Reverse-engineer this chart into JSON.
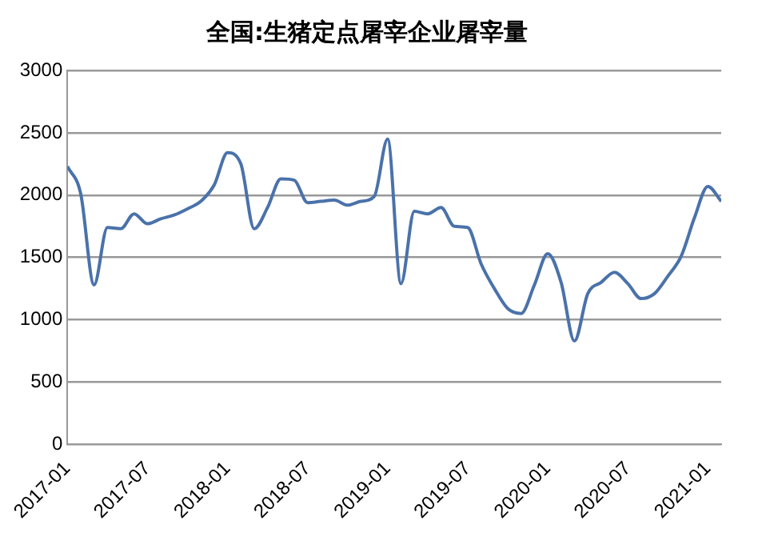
{
  "chart_data": {
    "type": "line",
    "title": "全国:生猪定点屠宰企业屠宰量",
    "x": [
      "2017-01",
      "2017-02",
      "2017-03",
      "2017-04",
      "2017-05",
      "2017-06",
      "2017-07",
      "2017-08",
      "2017-09",
      "2017-10",
      "2017-11",
      "2017-12",
      "2018-01",
      "2018-02",
      "2018-03",
      "2018-04",
      "2018-05",
      "2018-06",
      "2018-07",
      "2018-08",
      "2018-09",
      "2018-10",
      "2018-11",
      "2018-12",
      "2019-01",
      "2019-02",
      "2019-03",
      "2019-04",
      "2019-05",
      "2019-06",
      "2019-07",
      "2019-08",
      "2019-09",
      "2019-10",
      "2019-11",
      "2019-12",
      "2020-01",
      "2020-02",
      "2020-03",
      "2020-04",
      "2020-05",
      "2020-06",
      "2020-07",
      "2020-08",
      "2020-09",
      "2020-10",
      "2020-11",
      "2020-12",
      "2021-01",
      "2021-02"
    ],
    "series": [
      {
        "color": "#4a72aa",
        "values": [
          2230,
          2010,
          1280,
          1740,
          1730,
          1850,
          1770,
          1810,
          1840,
          1890,
          1950,
          2080,
          2340,
          2250,
          1730,
          1900,
          2130,
          2120,
          1940,
          1950,
          1960,
          1920,
          1950,
          1990,
          2450,
          1290,
          1870,
          1850,
          1900,
          1750,
          1740,
          1450,
          1250,
          1090,
          1050,
          1280,
          1530,
          1300,
          830,
          1210,
          1300,
          1380,
          1290,
          1170,
          1210,
          1350,
          1510,
          1820,
          2070,
          1950
        ]
      }
    ],
    "xlim": [
      "2017-01",
      "2021-02"
    ],
    "xticks": [
      "2017-01",
      "2017-07",
      "2018-01",
      "2018-07",
      "2019-01",
      "2019-07",
      "2020-01",
      "2020-07",
      "2021-01"
    ],
    "ylim": [
      0,
      3000
    ],
    "yticks": [
      0,
      500,
      1000,
      1500,
      2000,
      2500,
      3000
    ],
    "grid": "y",
    "legend": false,
    "marker": "none",
    "line_style": "solid"
  }
}
